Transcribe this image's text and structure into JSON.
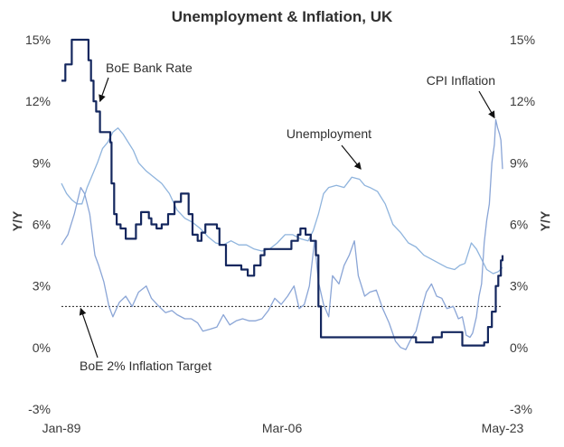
{
  "chart_data": {
    "type": "line",
    "title": "Unemployment & Inflation, UK",
    "ylabel_left": "Y/Y",
    "ylabel_right": "Y/Y",
    "ylim": [
      -3,
      15
    ],
    "y_ticks": [
      "-3%",
      "0%",
      "3%",
      "6%",
      "9%",
      "12%",
      "15%"
    ],
    "x_tick_labels": [
      {
        "label": "Jan-89",
        "x": 1989.0
      },
      {
        "label": "Mar-06",
        "x": 2006.17
      },
      {
        "label": "May-23",
        "x": 2023.33
      }
    ],
    "xlim": [
      1989.0,
      2023.33
    ],
    "grid": false,
    "colors": {
      "bank_rate": "#14275e",
      "cpi": "#8aa5d6",
      "unemployment": "#8fb4dd",
      "target": "#222222"
    },
    "series": [
      {
        "name": "BoE Bank Rate",
        "step": true,
        "points": [
          [
            1989.0,
            13.0
          ],
          [
            1989.3,
            13.8
          ],
          [
            1989.8,
            15.0
          ],
          [
            1991.0,
            15.0
          ],
          [
            1991.1,
            14.0
          ],
          [
            1991.3,
            13.0
          ],
          [
            1991.5,
            12.0
          ],
          [
            1991.7,
            11.5
          ],
          [
            1992.0,
            10.5
          ],
          [
            1992.8,
            10.0
          ],
          [
            1992.9,
            8.0
          ],
          [
            1993.1,
            6.5
          ],
          [
            1993.3,
            6.0
          ],
          [
            1993.6,
            5.8
          ],
          [
            1994.0,
            5.3
          ],
          [
            1994.8,
            6.0
          ],
          [
            1995.2,
            6.6
          ],
          [
            1995.8,
            6.3
          ],
          [
            1996.0,
            6.0
          ],
          [
            1996.4,
            5.8
          ],
          [
            1996.8,
            6.0
          ],
          [
            1997.3,
            6.5
          ],
          [
            1997.8,
            7.1
          ],
          [
            1998.3,
            7.5
          ],
          [
            1998.9,
            6.5
          ],
          [
            1999.2,
            5.5
          ],
          [
            1999.6,
            5.2
          ],
          [
            1999.9,
            5.6
          ],
          [
            2000.2,
            6.0
          ],
          [
            2001.1,
            5.8
          ],
          [
            2001.3,
            5.0
          ],
          [
            2001.8,
            4.0
          ],
          [
            2003.0,
            3.8
          ],
          [
            2003.5,
            3.5
          ],
          [
            2004.0,
            4.0
          ],
          [
            2004.5,
            4.5
          ],
          [
            2004.8,
            4.8
          ],
          [
            2006.6,
            4.8
          ],
          [
            2006.9,
            5.2
          ],
          [
            2007.4,
            5.5
          ],
          [
            2007.6,
            5.8
          ],
          [
            2008.0,
            5.5
          ],
          [
            2008.4,
            5.2
          ],
          [
            2008.8,
            4.5
          ],
          [
            2009.0,
            2.0
          ],
          [
            2009.2,
            0.5
          ],
          [
            2016.6,
            0.25
          ],
          [
            2017.9,
            0.5
          ],
          [
            2018.6,
            0.75
          ],
          [
            2020.2,
            0.1
          ],
          [
            2021.9,
            0.25
          ],
          [
            2022.2,
            1.0
          ],
          [
            2022.5,
            1.75
          ],
          [
            2022.8,
            3.0
          ],
          [
            2023.0,
            3.5
          ],
          [
            2023.2,
            4.25
          ],
          [
            2023.33,
            4.5
          ]
        ]
      },
      {
        "name": "CPI Inflation",
        "points": [
          [
            1989.0,
            5.0
          ],
          [
            1989.5,
            5.5
          ],
          [
            1990.0,
            6.5
          ],
          [
            1990.5,
            7.8
          ],
          [
            1990.8,
            7.5
          ],
          [
            1991.2,
            6.5
          ],
          [
            1991.6,
            4.5
          ],
          [
            1991.9,
            4.0
          ],
          [
            1992.3,
            3.2
          ],
          [
            1992.7,
            2.0
          ],
          [
            1993.0,
            1.5
          ],
          [
            1993.5,
            2.2
          ],
          [
            1994.0,
            2.5
          ],
          [
            1994.5,
            2.0
          ],
          [
            1995.0,
            2.7
          ],
          [
            1995.6,
            3.0
          ],
          [
            1996.0,
            2.4
          ],
          [
            1996.6,
            2.0
          ],
          [
            1997.1,
            1.7
          ],
          [
            1997.6,
            1.8
          ],
          [
            1998.0,
            1.6
          ],
          [
            1998.6,
            1.4
          ],
          [
            1999.1,
            1.4
          ],
          [
            1999.6,
            1.2
          ],
          [
            2000.0,
            0.8
          ],
          [
            2000.6,
            0.9
          ],
          [
            2001.1,
            1.0
          ],
          [
            2001.6,
            1.6
          ],
          [
            2002.1,
            1.1
          ],
          [
            2002.6,
            1.3
          ],
          [
            2003.1,
            1.4
          ],
          [
            2003.6,
            1.3
          ],
          [
            2004.1,
            1.3
          ],
          [
            2004.6,
            1.4
          ],
          [
            2005.1,
            1.8
          ],
          [
            2005.6,
            2.4
          ],
          [
            2006.1,
            2.1
          ],
          [
            2006.6,
            2.5
          ],
          [
            2007.1,
            3.0
          ],
          [
            2007.5,
            1.9
          ],
          [
            2007.9,
            2.1
          ],
          [
            2008.3,
            3.0
          ],
          [
            2008.7,
            5.2
          ],
          [
            2009.0,
            3.2
          ],
          [
            2009.4,
            2.1
          ],
          [
            2009.8,
            1.5
          ],
          [
            2010.1,
            3.5
          ],
          [
            2010.6,
            3.1
          ],
          [
            2011.0,
            4.0
          ],
          [
            2011.4,
            4.5
          ],
          [
            2011.8,
            5.2
          ],
          [
            2012.1,
            3.5
          ],
          [
            2012.6,
            2.5
          ],
          [
            2013.0,
            2.7
          ],
          [
            2013.5,
            2.8
          ],
          [
            2014.0,
            1.9
          ],
          [
            2014.5,
            1.2
          ],
          [
            2015.0,
            0.3
          ],
          [
            2015.4,
            0.0
          ],
          [
            2015.8,
            -0.1
          ],
          [
            2016.2,
            0.4
          ],
          [
            2016.6,
            0.8
          ],
          [
            2017.0,
            1.8
          ],
          [
            2017.4,
            2.7
          ],
          [
            2017.8,
            3.1
          ],
          [
            2018.2,
            2.5
          ],
          [
            2018.6,
            2.4
          ],
          [
            2019.0,
            1.9
          ],
          [
            2019.5,
            2.0
          ],
          [
            2019.9,
            1.4
          ],
          [
            2020.2,
            1.5
          ],
          [
            2020.5,
            0.6
          ],
          [
            2020.8,
            0.5
          ],
          [
            2021.0,
            0.7
          ],
          [
            2021.3,
            1.5
          ],
          [
            2021.5,
            2.5
          ],
          [
            2021.7,
            3.1
          ],
          [
            2021.9,
            5.1
          ],
          [
            2022.1,
            6.2
          ],
          [
            2022.3,
            7.0
          ],
          [
            2022.5,
            9.0
          ],
          [
            2022.7,
            9.9
          ],
          [
            2022.8,
            11.1
          ],
          [
            2022.95,
            10.7
          ],
          [
            2023.1,
            10.4
          ],
          [
            2023.2,
            10.1
          ],
          [
            2023.33,
            8.7
          ]
        ]
      },
      {
        "name": "Unemployment",
        "points": [
          [
            1989.0,
            8.0
          ],
          [
            1989.4,
            7.5
          ],
          [
            1989.8,
            7.2
          ],
          [
            1990.2,
            7.0
          ],
          [
            1990.6,
            7.0
          ],
          [
            1991.0,
            7.8
          ],
          [
            1991.4,
            8.4
          ],
          [
            1991.8,
            9.0
          ],
          [
            1992.2,
            9.7
          ],
          [
            1992.6,
            10.0
          ],
          [
            1993.0,
            10.5
          ],
          [
            1993.4,
            10.7
          ],
          [
            1993.8,
            10.4
          ],
          [
            1994.2,
            10.0
          ],
          [
            1994.6,
            9.6
          ],
          [
            1995.0,
            9.0
          ],
          [
            1995.6,
            8.6
          ],
          [
            1996.2,
            8.3
          ],
          [
            1996.8,
            8.0
          ],
          [
            1997.4,
            7.5
          ],
          [
            1998.0,
            6.7
          ],
          [
            1998.6,
            6.3
          ],
          [
            1999.2,
            6.1
          ],
          [
            1999.8,
            5.8
          ],
          [
            2000.4,
            5.4
          ],
          [
            2001.0,
            5.1
          ],
          [
            2001.6,
            5.0
          ],
          [
            2002.2,
            5.2
          ],
          [
            2002.8,
            5.0
          ],
          [
            2003.4,
            5.0
          ],
          [
            2004.0,
            4.8
          ],
          [
            2004.6,
            4.7
          ],
          [
            2005.2,
            4.8
          ],
          [
            2005.8,
            5.1
          ],
          [
            2006.4,
            5.5
          ],
          [
            2007.0,
            5.5
          ],
          [
            2007.6,
            5.3
          ],
          [
            2008.2,
            5.2
          ],
          [
            2008.6,
            5.7
          ],
          [
            2009.0,
            6.5
          ],
          [
            2009.4,
            7.5
          ],
          [
            2009.8,
            7.8
          ],
          [
            2010.4,
            7.9
          ],
          [
            2011.0,
            7.8
          ],
          [
            2011.6,
            8.3
          ],
          [
            2012.2,
            8.2
          ],
          [
            2012.6,
            7.9
          ],
          [
            2013.0,
            7.8
          ],
          [
            2013.6,
            7.6
          ],
          [
            2014.2,
            7.0
          ],
          [
            2014.8,
            6.0
          ],
          [
            2015.4,
            5.6
          ],
          [
            2016.0,
            5.1
          ],
          [
            2016.6,
            4.9
          ],
          [
            2017.2,
            4.5
          ],
          [
            2017.8,
            4.3
          ],
          [
            2018.4,
            4.1
          ],
          [
            2019.0,
            3.9
          ],
          [
            2019.6,
            3.8
          ],
          [
            2020.0,
            4.0
          ],
          [
            2020.4,
            4.1
          ],
          [
            2020.9,
            5.1
          ],
          [
            2021.3,
            4.8
          ],
          [
            2021.7,
            4.3
          ],
          [
            2022.1,
            3.8
          ],
          [
            2022.6,
            3.6
          ],
          [
            2023.0,
            3.7
          ],
          [
            2023.33,
            3.9
          ]
        ]
      },
      {
        "name": "BoE 2% Inflation Target",
        "dashed": true,
        "points": [
          [
            1989.0,
            2.0
          ],
          [
            2023.33,
            2.0
          ]
        ]
      }
    ],
    "annotations": [
      {
        "text": "BoE Bank Rate",
        "points_to": [
          1992.0,
          12.0
        ]
      },
      {
        "text": "CPI Inflation",
        "points_to": [
          2022.7,
          11.2
        ]
      },
      {
        "text": "Unemployment",
        "points_to": [
          2012.3,
          8.7
        ]
      },
      {
        "text": "BoE 2% Inflation Target",
        "points_to": [
          1990.5,
          1.9
        ]
      }
    ]
  }
}
